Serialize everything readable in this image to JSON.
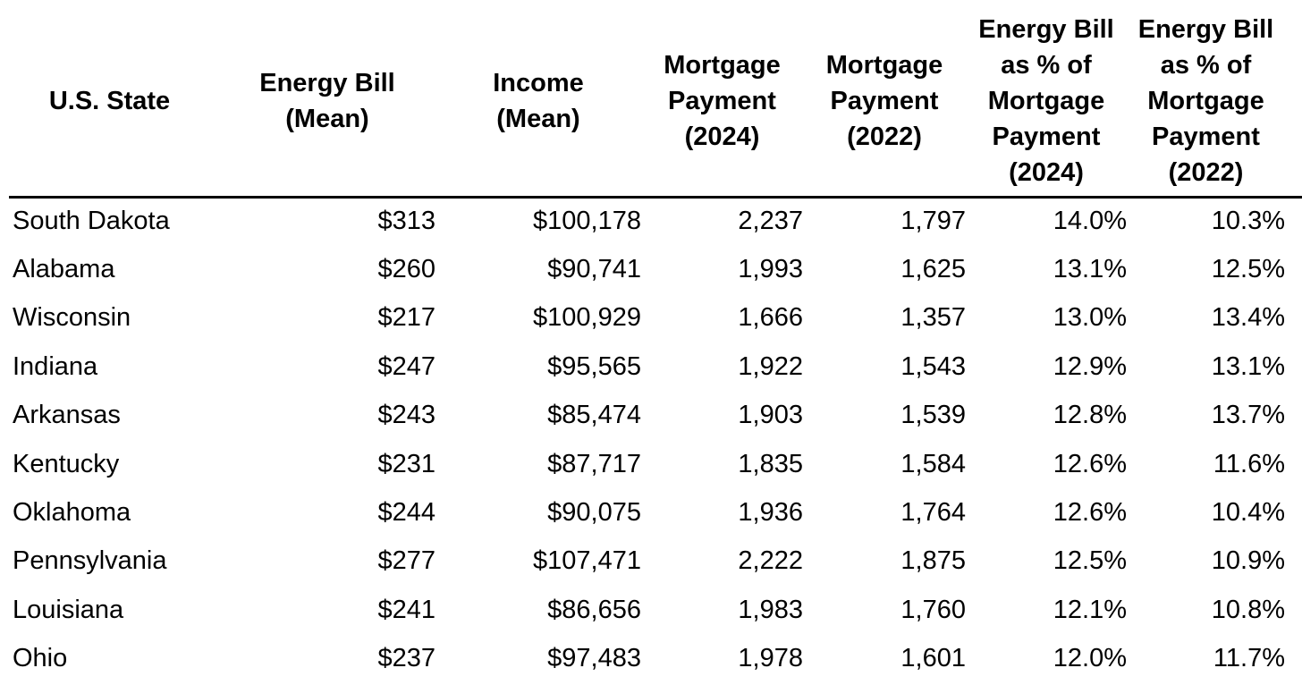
{
  "chart_data": {
    "type": "table",
    "title": "",
    "columns": [
      {
        "id": "state",
        "label": "U.S. State",
        "lines": [
          "U.S. State"
        ],
        "align": "left"
      },
      {
        "id": "energy_bill_mean",
        "label": "Energy Bill (Mean)",
        "lines": [
          "Energy Bill",
          "(Mean)"
        ],
        "align": "right"
      },
      {
        "id": "income_mean",
        "label": "Income (Mean)",
        "lines": [
          "Income",
          "(Mean)"
        ],
        "align": "right"
      },
      {
        "id": "mortgage_2024",
        "label": "Mortgage Payment (2024)",
        "lines": [
          "Mortgage",
          "Payment",
          "(2024)"
        ],
        "align": "right"
      },
      {
        "id": "mortgage_2022",
        "label": "Mortgage Payment (2022)",
        "lines": [
          "Mortgage",
          "Payment",
          "(2022)"
        ],
        "align": "right"
      },
      {
        "id": "pct_2024",
        "label": "Energy Bill as % of Mortgage Payment (2024)",
        "lines": [
          "Energy Bill",
          "as % of",
          "Mortgage",
          "Payment",
          "(2024)"
        ],
        "align": "right"
      },
      {
        "id": "pct_2022",
        "label": "Energy Bill as % of Mortgage Payment (2022)",
        "lines": [
          "Energy Bill",
          "as % of",
          "Mortgage",
          "Payment",
          "(2022)"
        ],
        "align": "right"
      }
    ],
    "rows": [
      [
        "South Dakota",
        "$313",
        "$100,178",
        "2,237",
        "1,797",
        "14.0%",
        "10.3%"
      ],
      [
        "Alabama",
        "$260",
        "$90,741",
        "1,993",
        "1,625",
        "13.1%",
        "12.5%"
      ],
      [
        "Wisconsin",
        "$217",
        "$100,929",
        "1,666",
        "1,357",
        "13.0%",
        "13.4%"
      ],
      [
        "Indiana",
        "$247",
        "$95,565",
        "1,922",
        "1,543",
        "12.9%",
        "13.1%"
      ],
      [
        "Arkansas",
        "$243",
        "$85,474",
        "1,903",
        "1,539",
        "12.8%",
        "13.7%"
      ],
      [
        "Kentucky",
        "$231",
        "$87,717",
        "1,835",
        "1,584",
        "12.6%",
        "11.6%"
      ],
      [
        "Oklahoma",
        "$244",
        "$90,075",
        "1,936",
        "1,764",
        "12.6%",
        "10.4%"
      ],
      [
        "Pennsylvania",
        "$277",
        "$107,471",
        "2,222",
        "1,875",
        "12.5%",
        "10.9%"
      ],
      [
        "Louisiana",
        "$241",
        "$86,656",
        "1,983",
        "1,760",
        "12.1%",
        "10.8%"
      ],
      [
        "Ohio",
        "$237",
        "$97,483",
        "1,978",
        "1,601",
        "12.0%",
        "11.7%"
      ]
    ],
    "layout": {
      "header_rule": true,
      "row_gridlines": false
    },
    "colors": {
      "background": "#ffffff",
      "text": "#000000",
      "header_text": "#000000",
      "header_rule": "#000000"
    }
  }
}
